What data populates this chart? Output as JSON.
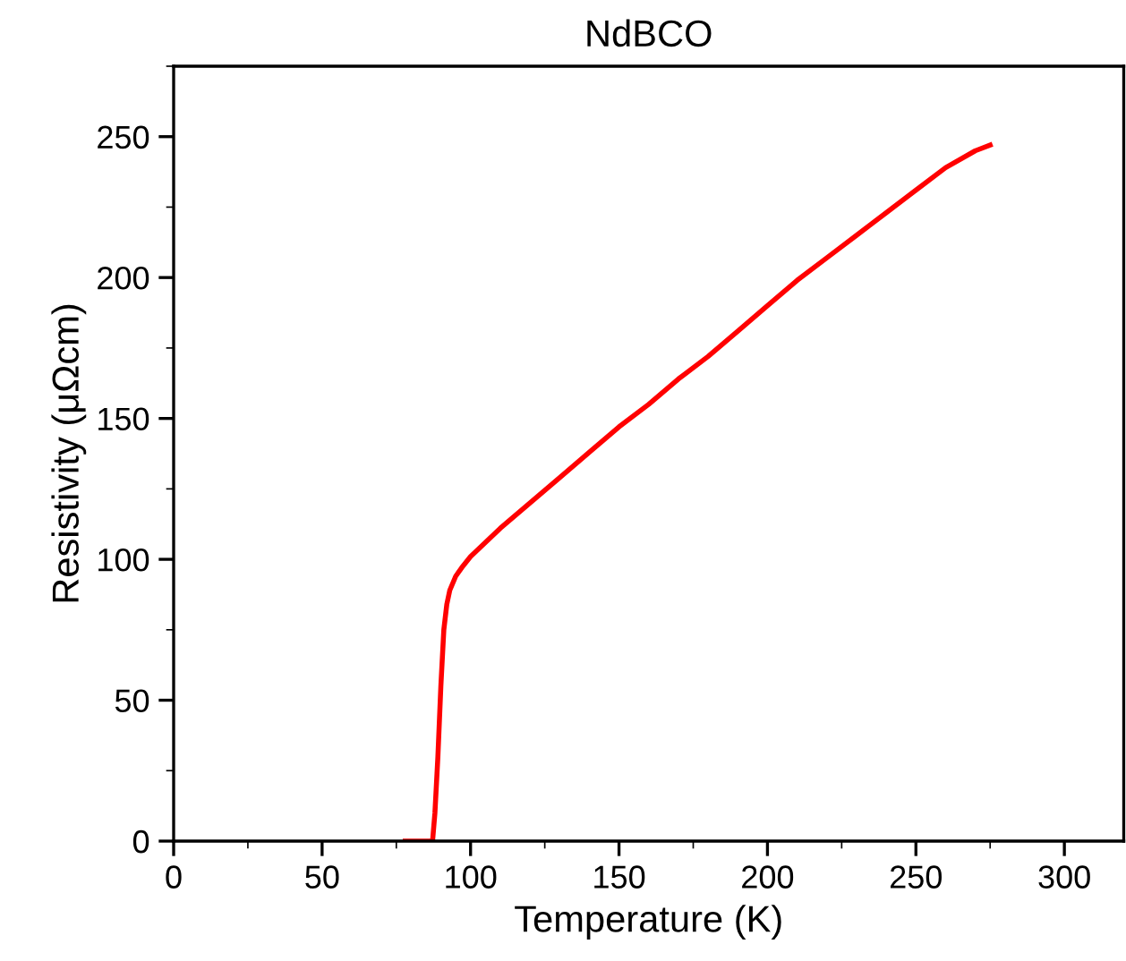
{
  "chart_data": {
    "type": "line",
    "title": "NdBCO",
    "xlabel": "Temperature (K)",
    "ylabel": "Resistivity (μΩcm)",
    "xlim": [
      0,
      320
    ],
    "ylim": [
      0,
      275
    ],
    "xticks": [
      0,
      50,
      100,
      150,
      200,
      250,
      300
    ],
    "yticks": [
      0,
      50,
      100,
      150,
      200,
      250
    ],
    "grid": false,
    "legend": false,
    "marker": "none",
    "line_style": "solid",
    "series": [
      {
        "color": "#ff0000",
        "x": [
          78,
          84,
          87.2,
          88,
          89,
          90,
          91,
          92,
          93,
          95,
          97,
          100,
          105,
          110,
          120,
          130,
          140,
          150,
          160,
          170,
          180,
          190,
          200,
          210,
          220,
          230,
          240,
          250,
          260,
          270,
          275
        ],
        "values": [
          0,
          0,
          0,
          10,
          30,
          55,
          75,
          84,
          89,
          94,
          97,
          101,
          106,
          111,
          120,
          129,
          138,
          147,
          155,
          164,
          172,
          181,
          190,
          199,
          207,
          215,
          223,
          231,
          239,
          245,
          247
        ]
      }
    ]
  }
}
